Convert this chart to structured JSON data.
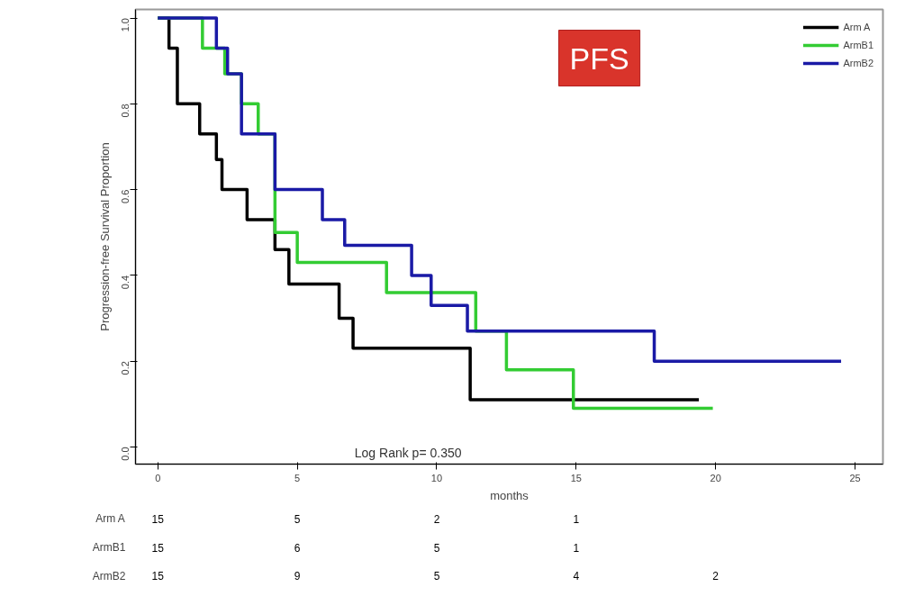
{
  "chart_data": [
    {
      "type": "step",
      "title": "PFS",
      "xlabel": "months",
      "ylabel": "Progression-free Survival Proportion",
      "xlim": [
        -0.8,
        26
      ],
      "ylim": [
        -0.04,
        1.02
      ],
      "xticks": [
        0,
        5,
        10,
        15,
        20,
        25
      ],
      "yticks": [
        {
          "value": 0,
          "label": "0.0"
        },
        0.2,
        0.4,
        0.6,
        0.8,
        {
          "value": 1,
          "label": "1.0"
        }
      ],
      "grid": false,
      "legend": "top right",
      "line_style": "solid",
      "marker": "none",
      "annotations": [
        {
          "text": "Log Rank p= 0.350"
        }
      ],
      "series": [
        {
          "name": "Arm A",
          "color": "#000000",
          "x": [
            0,
            0.4,
            0.7,
            1.5,
            2.1,
            2.3,
            3.2,
            4.2,
            4.7,
            6.5,
            7.0,
            11.2,
            19.4
          ],
          "values": [
            1,
            0.93,
            0.8,
            0.73,
            0.67,
            0.6,
            0.53,
            0.46,
            0.38,
            0.3,
            0.23,
            0.11,
            0.11
          ]
        },
        {
          "name": "ArmB1",
          "color": "#33cc33",
          "x": [
            0,
            1.6,
            2.4,
            3.0,
            3.6,
            4.2,
            5.0,
            8.2,
            11.4,
            12.5,
            14.9,
            19.9
          ],
          "values": [
            1,
            0.93,
            0.87,
            0.8,
            0.73,
            0.5,
            0.43,
            0.36,
            0.27,
            0.18,
            0.09,
            0.09
          ]
        },
        {
          "name": "ArmB2",
          "color": "#1a1aa6",
          "x": [
            0,
            2.1,
            2.5,
            3.0,
            4.2,
            5.9,
            6.7,
            9.1,
            9.8,
            11.1,
            17.8,
            24.5
          ],
          "values": [
            1,
            0.93,
            0.87,
            0.73,
            0.6,
            0.53,
            0.47,
            0.4,
            0.33,
            0.27,
            0.2,
            0.2
          ]
        }
      ]
    },
    {
      "type": "other",
      "categories": [
        null,
        null,
        null,
        null,
        null
      ],
      "y_categories": [
        "Arm A",
        "ArmB1",
        "ArmB2"
      ],
      "cells": [
        [
          "15",
          "5",
          "2",
          "1",
          null
        ],
        [
          "15",
          "6",
          "5",
          "1",
          null
        ],
        [
          "15",
          "9",
          "5",
          "4",
          "2"
        ]
      ]
    }
  ]
}
